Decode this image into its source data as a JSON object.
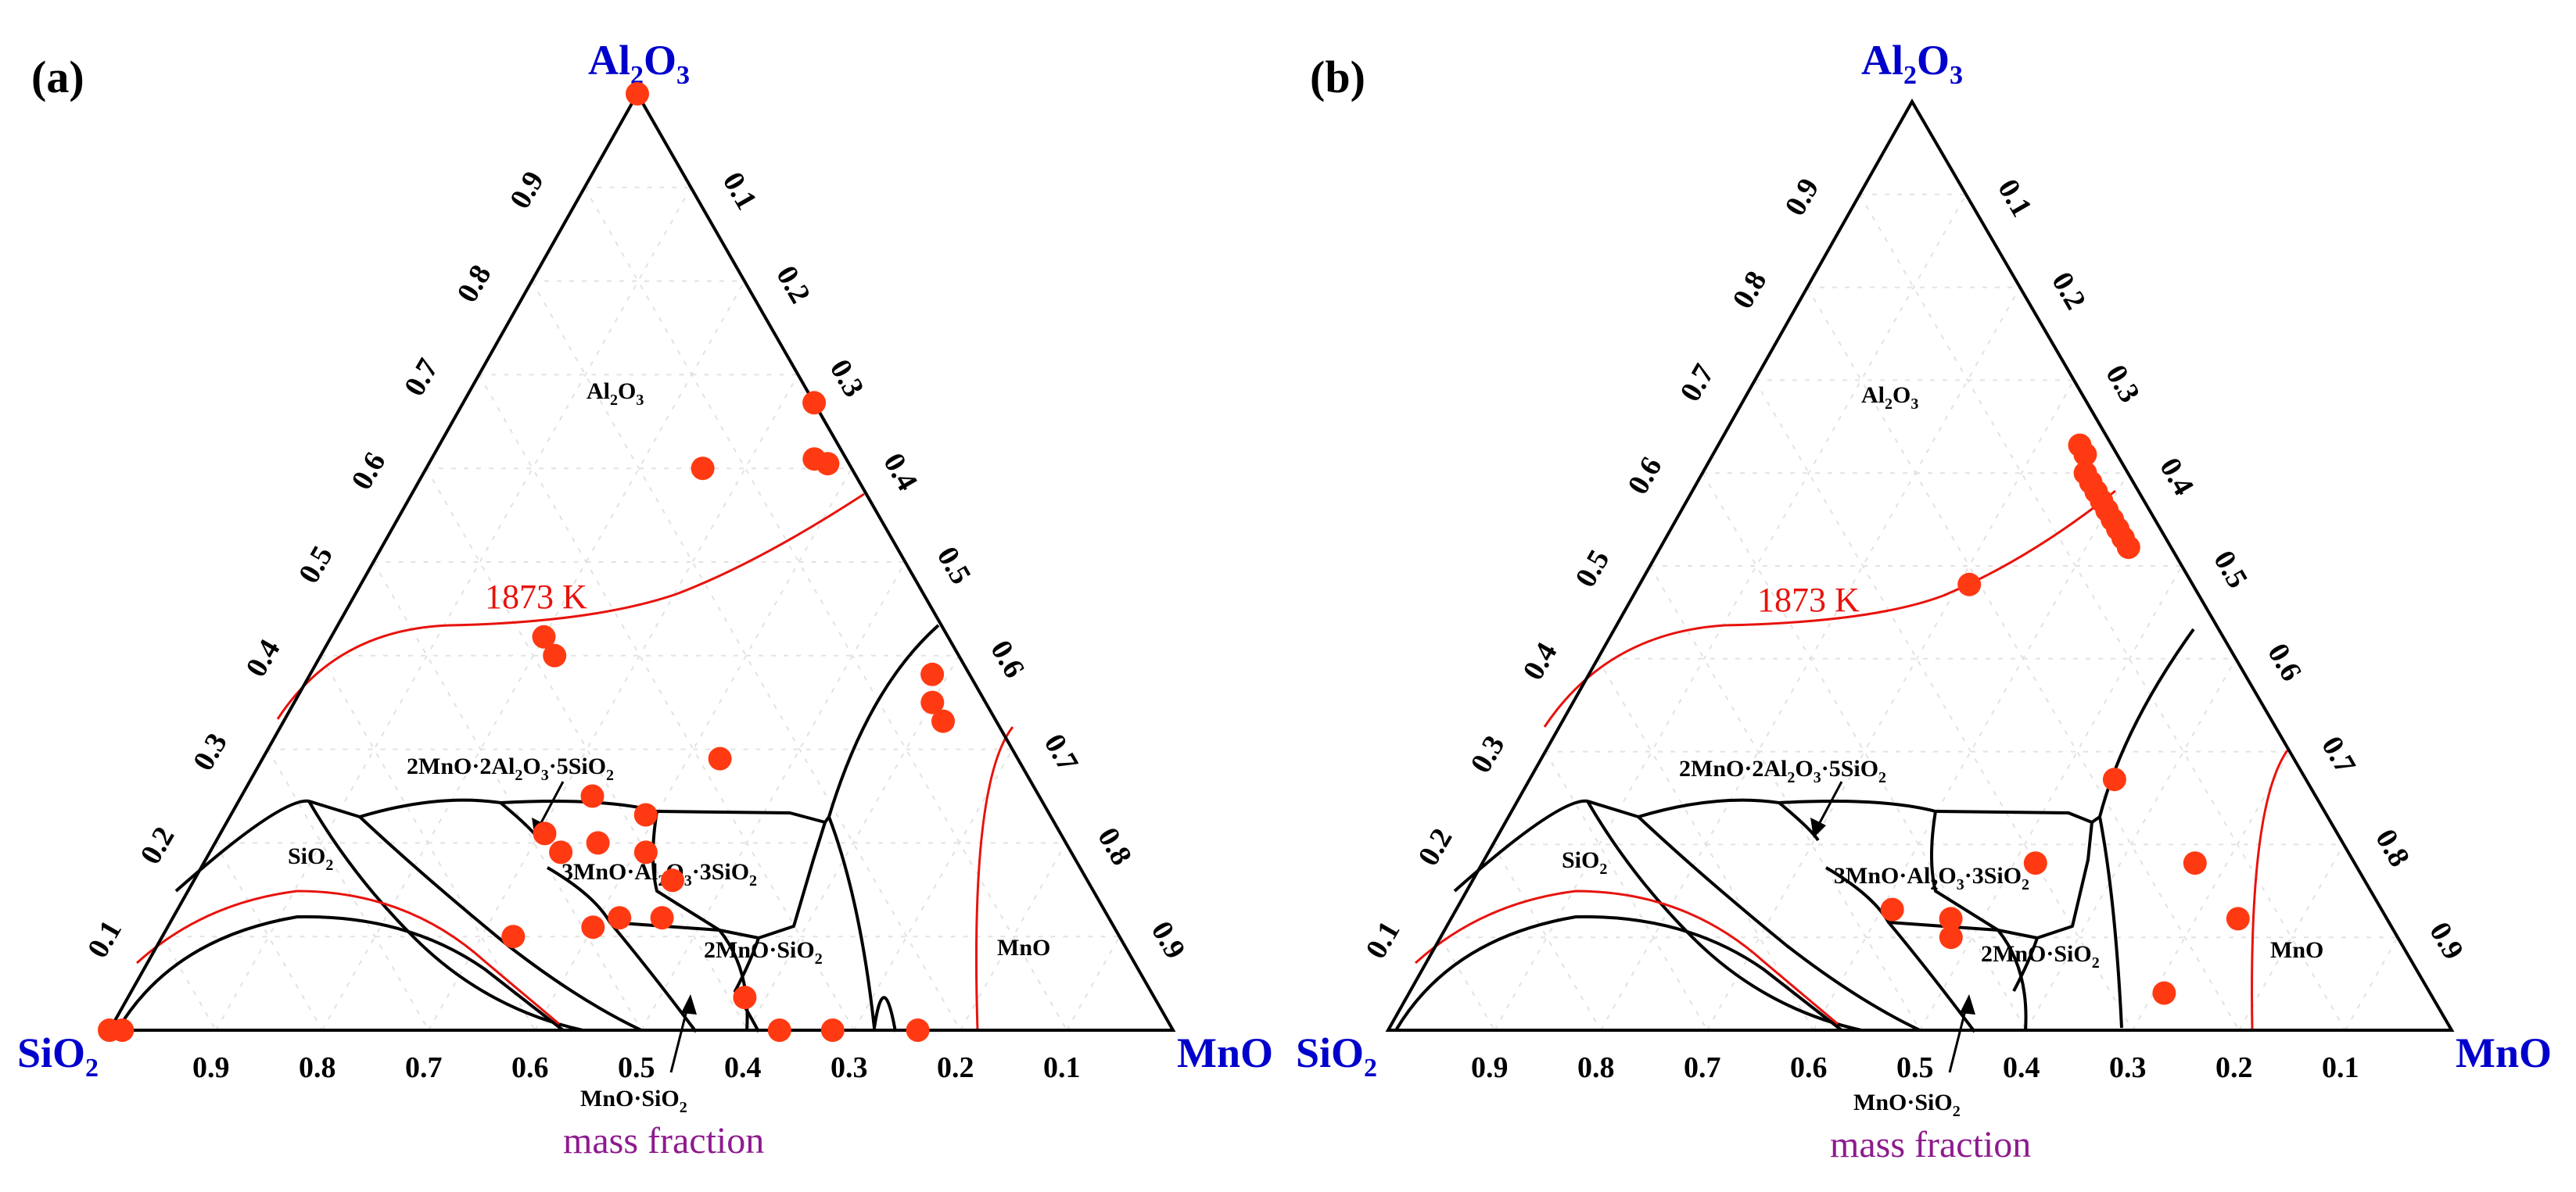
{
  "chart_data": [
    {
      "type": "scatter",
      "panel_label": "(a)",
      "vertex_labels": {
        "top": "Al2O3",
        "left": "SiO2",
        "right": "MnO"
      },
      "axis_title": "mass fraction",
      "ticks": {
        "bottom": [
          "0.9",
          "0.8",
          "0.7",
          "0.6",
          "0.5",
          "0.4",
          "0.3",
          "0.2",
          "0.1"
        ],
        "left": [
          "0.1",
          "0.2",
          "0.3",
          "0.4",
          "0.5",
          "0.6",
          "0.7",
          "0.8",
          "0.9"
        ],
        "right": [
          "0.1",
          "0.2",
          "0.3",
          "0.4",
          "0.5",
          "0.6",
          "0.7",
          "0.8",
          "0.9"
        ]
      },
      "phase_labels": [
        "Al2O3",
        "SiO2",
        "MnO",
        "2MnO·2Al2O3·5SiO2",
        "3MnO·Al2O3·3SiO2",
        "2MnO·SiO2",
        "MnO·SiO2"
      ],
      "isotherm_label": "1873 K",
      "point_color": "#ff3a12",
      "points": [
        {
          "MnO": 0.0,
          "Al2O3": 1.0
        },
        {
          "MnO": 0.33,
          "Al2O3": 0.67
        },
        {
          "MnO": 0.36,
          "Al2O3": 0.61
        },
        {
          "MnO": 0.375,
          "Al2O3": 0.605
        },
        {
          "MnO": 0.26,
          "Al2O3": 0.6
        },
        {
          "MnO": 0.585,
          "Al2O3": 0.38
        },
        {
          "MnO": 0.6,
          "Al2O3": 0.35
        },
        {
          "MnO": 0.62,
          "Al2O3": 0.33
        },
        {
          "MnO": 0.2,
          "Al2O3": 0.42
        },
        {
          "MnO": 0.22,
          "Al2O3": 0.4
        },
        {
          "MnO": 0.43,
          "Al2O3": 0.29
        },
        {
          "MnO": 0.33,
          "Al2O3": 0.25
        },
        {
          "MnO": 0.39,
          "Al2O3": 0.23
        },
        {
          "MnO": 0.305,
          "Al2O3": 0.21
        },
        {
          "MnO": 0.36,
          "Al2O3": 0.2
        },
        {
          "MnO": 0.33,
          "Al2O3": 0.19
        },
        {
          "MnO": 0.41,
          "Al2O3": 0.19
        },
        {
          "MnO": 0.45,
          "Al2O3": 0.16
        },
        {
          "MnO": 0.42,
          "Al2O3": 0.12
        },
        {
          "MnO": 0.33,
          "Al2O3": 0.1
        },
        {
          "MnO": 0.46,
          "Al2O3": 0.12
        },
        {
          "MnO": 0.4,
          "Al2O3": 0.11
        },
        {
          "MnO": 0.58,
          "Al2O3": 0.035
        },
        {
          "MnO": 0.63,
          "Al2O3": 0.0
        },
        {
          "MnO": 0.68,
          "Al2O3": 0.0
        },
        {
          "MnO": 0.76,
          "Al2O3": 0.0
        },
        {
          "MnO": 0.0,
          "Al2O3": 0.0
        },
        {
          "MnO": 0.012,
          "Al2O3": 0.0
        }
      ]
    },
    {
      "type": "scatter",
      "panel_label": "(b)",
      "vertex_labels": {
        "top": "Al2O3",
        "left": "SiO2",
        "right": "MnO"
      },
      "axis_title": "mass fraction",
      "ticks": {
        "bottom": [
          "0.9",
          "0.8",
          "0.7",
          "0.6",
          "0.5",
          "0.4",
          "0.3",
          "0.2",
          "0.1"
        ],
        "left": [
          "0.1",
          "0.2",
          "0.3",
          "0.4",
          "0.5",
          "0.6",
          "0.7",
          "0.8",
          "0.9"
        ],
        "right": [
          "0.1",
          "0.2",
          "0.3",
          "0.4",
          "0.5",
          "0.6",
          "0.7",
          "0.8",
          "0.9"
        ]
      },
      "phase_labels": [
        "Al2O3",
        "SiO2",
        "MnO",
        "2MnO·2Al2O3·5SiO2",
        "3MnO·Al2O3·3SiO2",
        "2MnO·SiO2",
        "MnO·SiO2"
      ],
      "isotherm_label": "1873 K",
      "point_color": "#ff3a12",
      "points": [
        {
          "MnO": 0.34,
          "Al2O3": 0.63
        },
        {
          "MnO": 0.35,
          "Al2O3": 0.62
        },
        {
          "MnO": 0.36,
          "Al2O3": 0.6
        },
        {
          "MnO": 0.37,
          "Al2O3": 0.59
        },
        {
          "MnO": 0.38,
          "Al2O3": 0.58
        },
        {
          "MnO": 0.39,
          "Al2O3": 0.57
        },
        {
          "MnO": 0.4,
          "Al2O3": 0.56
        },
        {
          "MnO": 0.41,
          "Al2O3": 0.55
        },
        {
          "MnO": 0.42,
          "Al2O3": 0.54
        },
        {
          "MnO": 0.43,
          "Al2O3": 0.53
        },
        {
          "MnO": 0.44,
          "Al2O3": 0.52
        },
        {
          "MnO": 0.31,
          "Al2O3": 0.48
        },
        {
          "MnO": 0.55,
          "Al2O3": 0.27
        },
        {
          "MnO": 0.52,
          "Al2O3": 0.18
        },
        {
          "MnO": 0.67,
          "Al2O3": 0.18
        },
        {
          "MnO": 0.41,
          "Al2O3": 0.13
        },
        {
          "MnO": 0.47,
          "Al2O3": 0.12
        },
        {
          "MnO": 0.48,
          "Al2O3": 0.1
        },
        {
          "MnO": 0.74,
          "Al2O3": 0.12
        },
        {
          "MnO": 0.71,
          "Al2O3": 0.04
        }
      ]
    }
  ]
}
